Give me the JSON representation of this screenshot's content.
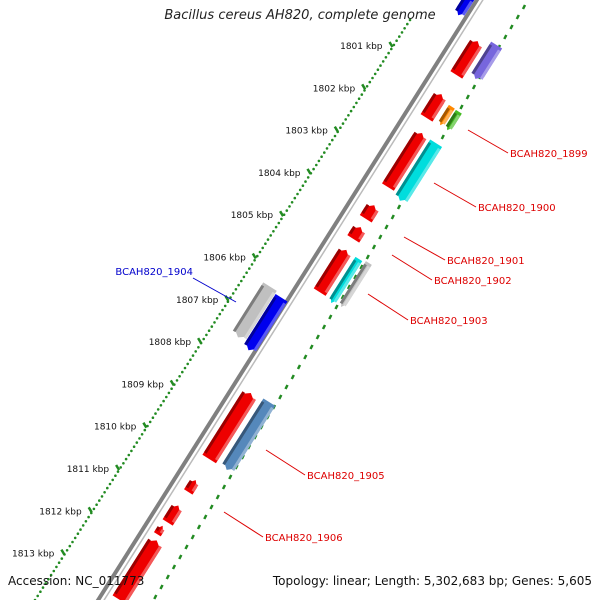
{
  "title": "Bacillus cereus AH820, complete genome",
  "footer": {
    "accession": "Accession: NC_011773",
    "summary": "Topology: linear; Length: 5,302,683 bp; Genes: 5,605"
  },
  "ruler": {
    "unit": "kbp",
    "ticks": [
      "1801 kbp",
      "1802 kbp",
      "1803 kbp",
      "1804 kbp",
      "1805 kbp",
      "1806 kbp",
      "1807 kbp",
      "1808 kbp",
      "1809 kbp",
      "1810 kbp",
      "1811 kbp",
      "1812 kbp",
      "1813 kbp"
    ]
  },
  "genes": [
    {
      "label": "BCAH820_1899",
      "color": "#dd0000"
    },
    {
      "label": "BCAH820_1900",
      "color": "#dd0000"
    },
    {
      "label": "BCAH820_1901",
      "color": "#dd0000"
    },
    {
      "label": "BCAH820_1902",
      "color": "#dd0000"
    },
    {
      "label": "BCAH820_1903",
      "color": "#dd0000"
    },
    {
      "label": "BCAH820_1904",
      "color": "#0000cc"
    },
    {
      "label": "BCAH820_1905",
      "color": "#dd0000"
    },
    {
      "label": "BCAH820_1906",
      "color": "#dd0000"
    }
  ],
  "colors": {
    "backbone": "#808080",
    "dots": "#228b22",
    "cds_red": "#ee0000",
    "cds_blue": "#0000ee",
    "cds_cyan": "#00dddd",
    "cds_steel": "#5588bb",
    "cds_gray": "#c0c0c0",
    "cds_purple": "#7766dd",
    "cds_orange": "#ff8800",
    "cds_green": "#44bb22"
  }
}
